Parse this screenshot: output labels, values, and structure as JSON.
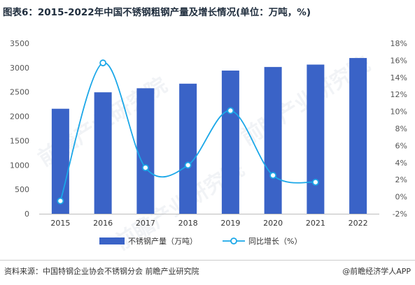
{
  "title": "图表6：2015-2022年中国不锈钢粗钢产量及增长情况(单位：万吨，%)",
  "source": "资料来源：中国特钢企业协会不锈钢分会 前瞻产业研究院",
  "credit": "@前瞻经济学人APP",
  "watermark": "前瞻产业研究院",
  "colors": {
    "bar": "#3a63c7",
    "line": "#1aa7e8",
    "marker_fill": "#ffffff"
  },
  "chart_data": {
    "type": "bar+line",
    "categories": [
      "2015",
      "2016",
      "2017",
      "2018",
      "2019",
      "2020",
      "2021",
      "2022"
    ],
    "series": [
      {
        "name": "不锈钢产量（万吨）",
        "type": "bar",
        "axis": "left",
        "values": [
          2156,
          2494,
          2577,
          2671,
          2940,
          3014,
          3063,
          3198
        ]
      },
      {
        "name": "同比增长（%）",
        "type": "line",
        "axis": "right",
        "smooth": true,
        "values": [
          -0.5,
          15.7,
          3.4,
          3.7,
          10.1,
          2.5,
          1.7,
          null
        ]
      }
    ],
    "y_left": {
      "min": 0,
      "max": 3500,
      "step": 500,
      "ticks": [
        "0",
        "500",
        "1000",
        "1500",
        "2000",
        "2500",
        "3000",
        "3500"
      ]
    },
    "y_right": {
      "min": -2,
      "max": 18,
      "step": 2,
      "ticks": [
        "-2%",
        "0%",
        "2%",
        "4%",
        "6%",
        "8%",
        "10%",
        "12%",
        "14%",
        "16%",
        "18%"
      ]
    },
    "grid": false,
    "legend_position": "bottom"
  }
}
